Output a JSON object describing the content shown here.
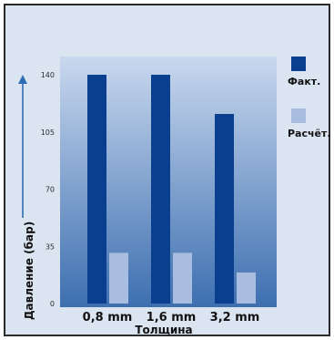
{
  "chart_data": {
    "type": "bar",
    "categories": [
      "0,8 mm",
      "1,6 mm",
      "3,2 mm"
    ],
    "series": [
      {
        "name": "Факт.",
        "color": "#0a3f8f",
        "values": [
          140,
          140,
          116
        ]
      },
      {
        "name": "Расчёт.",
        "color": "#a9bde0",
        "values": [
          31,
          31,
          19
        ]
      }
    ],
    "xlabel": "Толщина",
    "ylabel": "Давление (бар)",
    "yticks": [
      0,
      35,
      70,
      105,
      140
    ],
    "ylim": [
      0,
      140
    ],
    "legend_position": "right",
    "grid": false
  },
  "colors": {
    "plot_top": "#c9d8ee",
    "plot_bottom": "#3d6fb0",
    "frame_background": "#dbe5f1",
    "arrow": "#2f6db5"
  }
}
